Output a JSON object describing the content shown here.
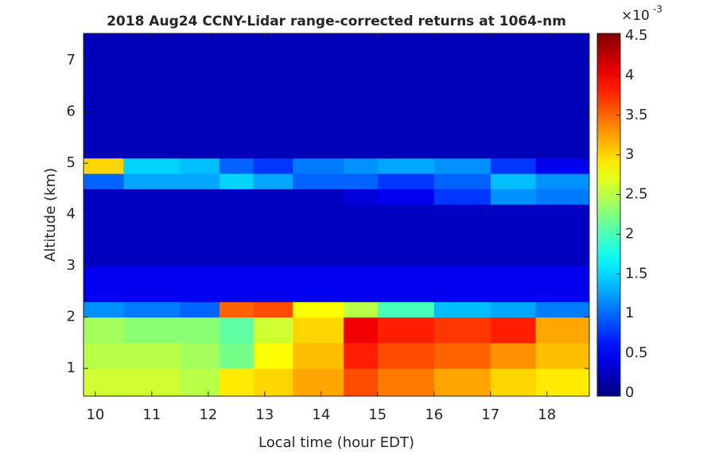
{
  "chart_data": {
    "type": "heatmap",
    "title": "2018 Aug24 CCNY-Lidar range-corrected returns at 1064-nm",
    "x_label": "Local time (hour EDT)",
    "y_label": "Altitude (km)",
    "xlim": [
      9.79,
      18.75
    ],
    "ylim": [
      0.46,
      7.53
    ],
    "xticks": [
      10,
      11,
      12,
      13,
      14,
      15,
      16,
      17,
      18
    ],
    "yticks": [
      1,
      2,
      3,
      4,
      5,
      6,
      7
    ],
    "xbins": [
      9.79,
      10.5,
      11.5,
      12.2,
      12.8,
      13.5,
      14.4,
      15,
      16,
      17,
      17.8,
      18.75
    ],
    "ybins": [
      0.46,
      1,
      1.5,
      2,
      2.3,
      3,
      4.2,
      4.5,
      4.8,
      5.1,
      7.53
    ],
    "z": [
      [
        2.6,
        2.6,
        2.5,
        2.9,
        3.0,
        3.2,
        3.6,
        3.4,
        3.2,
        3.0,
        2.9
      ],
      [
        2.5,
        2.5,
        2.4,
        2.2,
        2.8,
        3.1,
        3.8,
        3.6,
        3.5,
        3.3,
        3.1
      ],
      [
        2.4,
        2.3,
        2.3,
        2.1,
        2.6,
        3.0,
        4.0,
        3.8,
        3.7,
        3.8,
        3.2
      ],
      [
        1.2,
        1.1,
        1.0,
        3.5,
        3.6,
        2.8,
        2.5,
        2.0,
        1.4,
        1.3,
        1.1
      ],
      [
        0.5,
        0.5,
        0.5,
        0.5,
        0.5,
        0.5,
        0.5,
        0.5,
        0.5,
        0.5,
        0.5
      ],
      [
        0.3,
        0.3,
        0.3,
        0.3,
        0.3,
        0.3,
        0.3,
        0.3,
        0.3,
        0.3,
        0.3
      ],
      [
        0.3,
        0.3,
        0.3,
        0.3,
        0.3,
        0.3,
        0.4,
        0.5,
        0.8,
        1.2,
        1.1
      ],
      [
        1.0,
        1.3,
        1.3,
        1.5,
        1.3,
        1.0,
        1.0,
        0.8,
        1.0,
        1.4,
        1.2
      ],
      [
        3.0,
        1.5,
        1.4,
        1.0,
        0.8,
        1.1,
        1.2,
        1.3,
        1.2,
        0.8,
        0.5
      ],
      [
        0.25,
        0.25,
        0.25,
        0.25,
        0.25,
        0.25,
        0.25,
        0.25,
        0.25,
        0.25,
        0.25
      ]
    ],
    "colormap": "jet",
    "colorbar": {
      "clim": [
        0,
        4.5
      ],
      "ticks": [
        0,
        0.5,
        1,
        1.5,
        2,
        2.5,
        3,
        3.5,
        4,
        4.5
      ],
      "multiplier_base": "×10",
      "multiplier_exponent": "-3"
    }
  }
}
